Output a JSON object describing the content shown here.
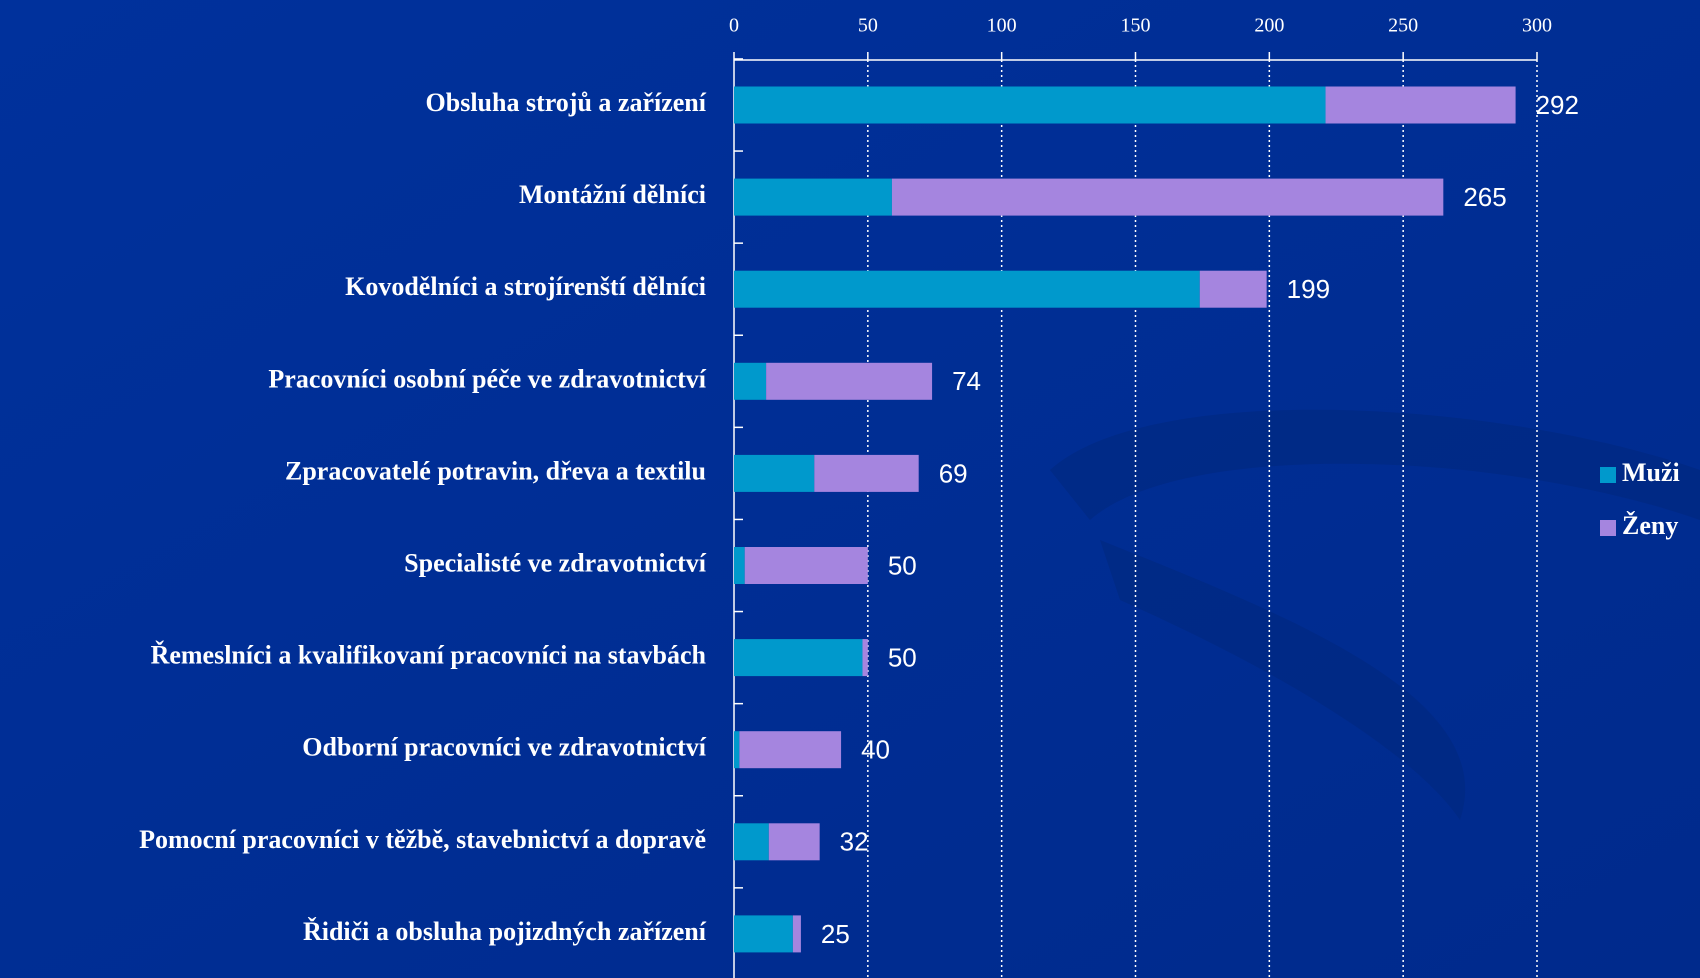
{
  "chart_data": {
    "type": "bar",
    "orientation": "horizontal",
    "stacked": true,
    "categories": [
      "Obsluha strojů a zařízení",
      "Montážní dělníci",
      "Kovodělníci a strojírenští dělníci",
      "Pracovníci osobní péče ve zdravotnictví",
      "Zpracovatelé potravin, dřeva a textilu",
      "Specialisté ve zdravotnictví",
      "Řemeslníci a kvalifikovaní pracovníci na stavbách",
      "Odborní pracovníci ve zdravotnictví",
      "Pomocní pracovníci v těžbě, stavebnictví a dopravě",
      "Řidiči a obsluha pojizdných zařízení"
    ],
    "series": [
      {
        "name": "Muži",
        "color": "#0099cc",
        "values": [
          221,
          59,
          174,
          12,
          30,
          4,
          48,
          2,
          13,
          22
        ]
      },
      {
        "name": "Ženy",
        "color": "#a585df",
        "values": [
          71,
          206,
          25,
          62,
          39,
          46,
          2,
          38,
          19,
          3
        ]
      }
    ],
    "totals": [
      292,
      265,
      199,
      74,
      69,
      50,
      50,
      40,
      32,
      25
    ],
    "xlim": [
      0,
      300
    ],
    "xticks": [
      0,
      50,
      100,
      150,
      200,
      250,
      300
    ],
    "grid": true,
    "legend": "right"
  }
}
